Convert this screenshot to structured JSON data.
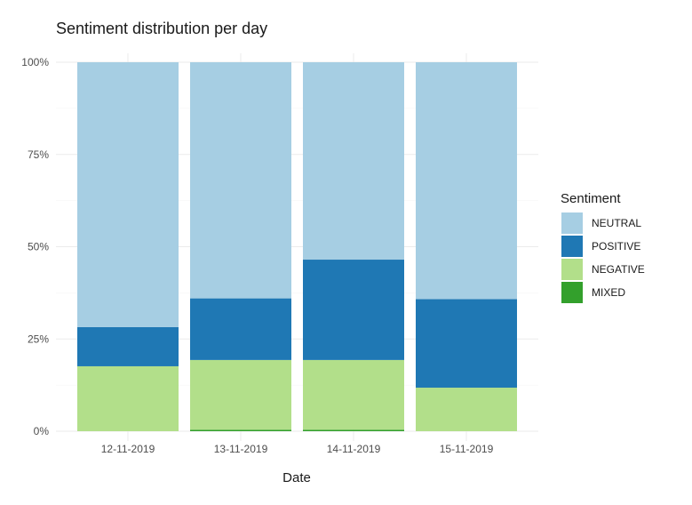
{
  "chart_data": {
    "type": "bar",
    "stacked": true,
    "normalized": true,
    "title": "Sentiment distribution per day",
    "xlabel": "Date",
    "ylabel": "",
    "ylim": [
      0,
      1
    ],
    "yticks": [
      0,
      0.25,
      0.5,
      0.75,
      1.0
    ],
    "ytick_labels": [
      "0%",
      "25%",
      "50%",
      "75%",
      "100%"
    ],
    "grid": true,
    "categories": [
      "12-11-2019",
      "13-11-2019",
      "14-11-2019",
      "15-11-2019"
    ],
    "series": [
      {
        "name": "MIXED",
        "color": "#33a02c",
        "values": [
          0.0,
          0.004,
          0.004,
          0.0
        ]
      },
      {
        "name": "NEGATIVE",
        "color": "#b2df8a",
        "values": [
          0.176,
          0.189,
          0.189,
          0.118
        ]
      },
      {
        "name": "POSITIVE",
        "color": "#1f78b4",
        "values": [
          0.106,
          0.167,
          0.272,
          0.24
        ]
      },
      {
        "name": "NEUTRAL",
        "color": "#a6cee3",
        "values": [
          0.718,
          0.64,
          0.535,
          0.642
        ]
      }
    ],
    "legend": {
      "title": "Sentiment",
      "position": "right",
      "order": [
        "NEUTRAL",
        "POSITIVE",
        "NEGATIVE",
        "MIXED"
      ]
    }
  }
}
